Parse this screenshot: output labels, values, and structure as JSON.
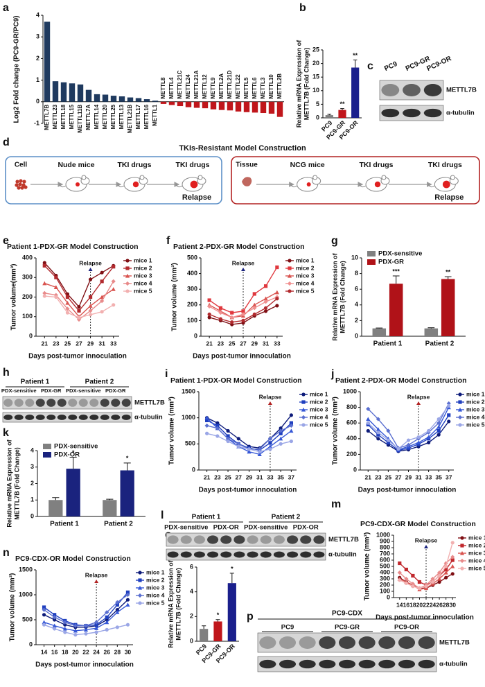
{
  "chart_data": [
    {
      "panel": "a",
      "type": "bar",
      "ylabel": "Log2 Fold change (PC9-GR/PC9)",
      "categories": [
        "METTL7B",
        "METTL23",
        "METTL18",
        "METTL15",
        "METTL11B",
        "METTL7A",
        "METTL14",
        "METTL20",
        "METTL25",
        "METTL13",
        "METTL21B",
        "METTL17",
        "METTL16",
        "METTL1",
        "METTL8",
        "METTL4",
        "METTL21C",
        "METTL24",
        "METTL21A",
        "METTL12",
        "METTL9",
        "METTL2A",
        "METTL21D",
        "METTL22",
        "METTL5",
        "METTL6",
        "METTL3",
        "METTL10",
        "METTL2B"
      ],
      "values": [
        3.7,
        0.95,
        0.9,
        0.85,
        0.8,
        0.55,
        0.35,
        0.33,
        0.28,
        0.25,
        0.2,
        0.17,
        0.12,
        0.05,
        -0.1,
        -0.15,
        -0.2,
        -0.25,
        -0.28,
        -0.3,
        -0.35,
        -0.38,
        -0.4,
        -0.45,
        -0.48,
        -0.5,
        -0.52,
        -0.55,
        -0.7
      ],
      "color_positive": "#1f3a5f",
      "color_negative": "#c0161b",
      "ylim": [
        -1,
        4
      ],
      "yticks": [
        -1,
        0,
        1,
        2,
        3,
        4
      ]
    },
    {
      "panel": "b",
      "type": "bar",
      "ylabel": [
        "Relative mRNA Expression of",
        "METTL7B (Fold Change)"
      ],
      "categories": [
        "PC9",
        "PC9-GR",
        "PC9-OR"
      ],
      "values": [
        1,
        2.9,
        18.5
      ],
      "errors": [
        0.3,
        0.5,
        2.8
      ],
      "colors": [
        "#808080",
        "#c0161b",
        "#1a1f8c"
      ],
      "annotations": [
        {
          "index": 1,
          "text": "**"
        },
        {
          "index": 2,
          "text": "**"
        }
      ],
      "ylim": [
        0,
        25
      ],
      "yticks": [
        0,
        5,
        10,
        15,
        20,
        25
      ]
    },
    {
      "panel": "e",
      "type": "line",
      "title": "Patient 1-PDX-GR Model Construction",
      "xlabel": "Days post-tumor innoculation",
      "ylabel": "Tumor volume(mm³)",
      "x": [
        21,
        23,
        25,
        27,
        29,
        31,
        33
      ],
      "xlim": [
        20,
        34
      ],
      "xticks": [
        21,
        23,
        25,
        27,
        29,
        31,
        33
      ],
      "ylim": [
        0,
        400
      ],
      "yticks": [
        0,
        100,
        200,
        300,
        400
      ],
      "annotation": {
        "text": "Relapse",
        "x": 29,
        "color": "#1a237e"
      },
      "series": [
        {
          "name": "mice 1",
          "color": "#7f0f14",
          "values": [
            375,
            310,
            215,
            150,
            290,
            325,
            360
          ]
        },
        {
          "name": "mice 2",
          "color": "#b22a2e",
          "values": [
            360,
            300,
            200,
            130,
            200,
            280,
            355
          ]
        },
        {
          "name": "mice 3",
          "color": "#d9534f",
          "values": [
            270,
            250,
            170,
            100,
            155,
            200,
            240
          ]
        },
        {
          "name": "mice 4",
          "color": "#e88a8a",
          "values": [
            220,
            210,
            140,
            85,
            130,
            180,
            280
          ]
        },
        {
          "name": "mice 5",
          "color": "#f2b0b0",
          "values": [
            205,
            200,
            120,
            95,
            110,
            125,
            160
          ]
        }
      ]
    },
    {
      "panel": "f",
      "type": "line",
      "title": "Patient 2-PDX-GR Model Construction",
      "xlabel": "Days post-tumor innoculation",
      "ylabel": "Tumor volume (mm³)",
      "x": [
        21,
        23,
        25,
        27,
        29,
        31,
        33
      ],
      "xlim": [
        20,
        34
      ],
      "xticks": [
        21,
        23,
        25,
        27,
        29,
        31,
        33
      ],
      "ylim": [
        0,
        500
      ],
      "yticks": [
        0,
        100,
        200,
        300,
        400,
        500
      ],
      "annotation": {
        "text": "Relapse",
        "x": 27,
        "color": "#1a237e"
      },
      "series": [
        {
          "name": "mice 1",
          "color": "#7f0f14",
          "values": [
            120,
            100,
            75,
            85,
            130,
            160,
            195
          ]
        },
        {
          "name": "mice 2",
          "color": "#e0383e",
          "values": [
            230,
            180,
            150,
            160,
            270,
            320,
            440
          ]
        },
        {
          "name": "mice 3",
          "color": "#d9534f",
          "values": [
            200,
            160,
            120,
            130,
            200,
            240,
            280
          ]
        },
        {
          "name": "mice 4",
          "color": "#f09090",
          "values": [
            190,
            150,
            120,
            140,
            180,
            220,
            250
          ]
        },
        {
          "name": "mice 5",
          "color": "#b22a2e",
          "values": [
            140,
            110,
            90,
            100,
            140,
            180,
            240
          ]
        }
      ]
    },
    {
      "panel": "g",
      "type": "grouped_bar",
      "ylabel": [
        "Relative mRNA Expression of",
        "METTL7B (Fold Change)"
      ],
      "categories": [
        "Patient 1",
        "Patient 2"
      ],
      "ylim": [
        0,
        10
      ],
      "yticks": [
        0,
        2,
        4,
        6,
        8,
        10
      ],
      "series": [
        {
          "name": "PDX-sensitive",
          "color": "#808080",
          "values": [
            1,
            1
          ],
          "errors": [
            0.05,
            0.08
          ]
        },
        {
          "name": "PDX-GR",
          "color": "#b01218",
          "values": [
            6.7,
            7.3
          ],
          "errors": [
            1.0,
            0.3
          ],
          "annotations": [
            {
              "index": 0,
              "text": "***"
            },
            {
              "index": 1,
              "text": "**"
            }
          ]
        }
      ]
    },
    {
      "panel": "i",
      "type": "line",
      "title": "Patient 1-PDX-OR Model Construction",
      "xlabel": "Days post-tumor innoculation",
      "ylabel": "Tumor volume (mm³)",
      "x": [
        21,
        23,
        25,
        27,
        29,
        31,
        33,
        35,
        37
      ],
      "xlim": [
        20,
        38
      ],
      "xticks": [
        21,
        23,
        25,
        27,
        29,
        31,
        33,
        35,
        37
      ],
      "ylim": [
        0,
        1500
      ],
      "yticks": [
        0,
        500,
        1000,
        1500
      ],
      "annotation": {
        "text": "Relapse",
        "x": 33,
        "color": "#b22222"
      },
      "series": [
        {
          "name": "mice 1",
          "color": "#0d1b7a",
          "values": [
            1000,
            900,
            750,
            600,
            450,
            420,
            600,
            800,
            1050
          ]
        },
        {
          "name": "mice 2",
          "color": "#1f3fbf",
          "values": [
            950,
            850,
            650,
            500,
            420,
            380,
            520,
            700,
            900
          ]
        },
        {
          "name": "mice 3",
          "color": "#3557d6",
          "values": [
            1000,
            800,
            600,
            450,
            350,
            300,
            450,
            600,
            750
          ]
        },
        {
          "name": "mice 4",
          "color": "#5a6fd0",
          "values": [
            850,
            800,
            600,
            500,
            400,
            400,
            600,
            750,
            850
          ]
        },
        {
          "name": "mice 5",
          "color": "#9aa6e6",
          "values": [
            700,
            650,
            550,
            450,
            400,
            350,
            400,
            500,
            550
          ]
        }
      ]
    },
    {
      "panel": "j",
      "type": "line",
      "title": "Patient 2-PDX-OR Model Construction",
      "xlabel": "Days post-tumor innoculation",
      "ylabel": "Tumor volume (mm³)",
      "x": [
        21,
        23,
        25,
        27,
        29,
        31,
        33,
        35,
        37
      ],
      "xlim": [
        20,
        38
      ],
      "xticks": [
        21,
        23,
        25,
        27,
        29,
        31,
        33,
        35,
        37
      ],
      "ylim": [
        0,
        1000
      ],
      "yticks": [
        0,
        200,
        400,
        600,
        800,
        1000
      ],
      "annotation": {
        "text": "Relapse",
        "x": 31,
        "color": "#b22222"
      },
      "series": [
        {
          "name": "mice 1",
          "color": "#0d1b7a",
          "values": [
            500,
            400,
            320,
            240,
            260,
            300,
            350,
            450,
            620
          ]
        },
        {
          "name": "mice 2",
          "color": "#1f3fbf",
          "values": [
            580,
            450,
            350,
            250,
            280,
            330,
            400,
            500,
            700
          ]
        },
        {
          "name": "mice 3",
          "color": "#3557d6",
          "values": [
            650,
            520,
            400,
            260,
            300,
            350,
            420,
            550,
            800
          ]
        },
        {
          "name": "mice 4",
          "color": "#5a6fd0",
          "values": [
            780,
            650,
            500,
            280,
            320,
            400,
            480,
            600,
            850
          ]
        },
        {
          "name": "mice 5",
          "color": "#9aa6e6",
          "values": [
            600,
            480,
            380,
            270,
            380,
            420,
            500,
            650,
            820
          ]
        }
      ]
    },
    {
      "panel": "k",
      "type": "grouped_bar",
      "ylabel": [
        "Relative mRNA Expression of",
        "METTL7B (Fold Change)"
      ],
      "categories": [
        "Patient 1",
        "Patient 2"
      ],
      "ylim": [
        0,
        4
      ],
      "yticks": [
        0,
        1,
        2,
        3,
        4
      ],
      "series": [
        {
          "name": "PDX-sensitive",
          "color": "#808080",
          "values": [
            1,
            1
          ],
          "errors": [
            0.15,
            0.05
          ]
        },
        {
          "name": "PDX-OR",
          "color": "#1a237e",
          "values": [
            2.9,
            2.8
          ],
          "errors": [
            0.7,
            0.45
          ],
          "annotations": [
            {
              "index": 0,
              "text": "*"
            },
            {
              "index": 1,
              "text": "*"
            }
          ]
        }
      ]
    },
    {
      "panel": "m",
      "type": "line",
      "title": "PC9-CDX-GR Model Construction",
      "xlabel": "Days post-tumor innoculation",
      "ylabel": "Tumor volume (mm³)",
      "x": [
        14,
        16,
        18,
        20,
        22,
        24,
        26,
        28,
        30
      ],
      "xlim": [
        13,
        31
      ],
      "xticks": [
        14,
        16,
        18,
        20,
        22,
        24,
        26,
        28,
        30
      ],
      "ylim": [
        0,
        1000
      ],
      "yticks": [
        0,
        100,
        200,
        300,
        400,
        500,
        600,
        700,
        800,
        900,
        1000
      ],
      "annotation": {
        "text": "Relapse",
        "x": 22,
        "color": "#1a237e"
      },
      "series": [
        {
          "name": "mice 1",
          "color": "#7f0f14",
          "values": [
            320,
            250,
            200,
            150,
            150,
            200,
            250,
            320,
            380
          ]
        },
        {
          "name": "mice 2",
          "color": "#c0282d",
          "values": [
            550,
            450,
            350,
            250,
            200,
            250,
            350,
            450,
            600
          ]
        },
        {
          "name": "mice 3",
          "color": "#d9534f",
          "values": [
            300,
            250,
            200,
            130,
            150,
            220,
            300,
            400,
            500
          ]
        },
        {
          "name": "mice 4",
          "color": "#e88a8a",
          "values": [
            400,
            300,
            220,
            150,
            200,
            300,
            400,
            550,
            650
          ]
        },
        {
          "name": "mice 5",
          "color": "#f2b0b0",
          "values": [
            280,
            230,
            180,
            150,
            180,
            250,
            350,
            500,
            880
          ]
        }
      ]
    },
    {
      "panel": "n",
      "type": "line",
      "title": "PC9-CDX-OR Model Construction",
      "xlabel": "Days post-tumor innoculation",
      "ylabel": "Tumor volume (mm³)",
      "x": [
        14,
        16,
        18,
        20,
        22,
        24,
        26,
        28,
        30
      ],
      "xlim": [
        13,
        31
      ],
      "xticks": [
        14,
        16,
        18,
        20,
        22,
        24,
        26,
        28,
        30
      ],
      "ylim": [
        0,
        1500
      ],
      "yticks": [
        0,
        500,
        1000,
        1500
      ],
      "annotation": {
        "text": "Relapse",
        "x": 24,
        "color": "#b22222"
      },
      "series": [
        {
          "name": "mice 1",
          "color": "#0d1b7a",
          "values": [
            600,
            500,
            400,
            350,
            350,
            380,
            500,
            700,
            900
          ]
        },
        {
          "name": "mice 2",
          "color": "#1f3fbf",
          "values": [
            750,
            600,
            480,
            400,
            380,
            400,
            550,
            800,
            1050
          ]
        },
        {
          "name": "mice 3",
          "color": "#3557d6",
          "values": [
            450,
            380,
            320,
            280,
            300,
            330,
            450,
            650,
            800
          ]
        },
        {
          "name": "mice 4",
          "color": "#5a6fd0",
          "values": [
            700,
            550,
            450,
            380,
            380,
            450,
            650,
            850,
            1000
          ]
        },
        {
          "name": "mice 5",
          "color": "#9aa6e6",
          "values": [
            400,
            320,
            250,
            200,
            220,
            250,
            300,
            350,
            400
          ]
        }
      ]
    },
    {
      "panel": "o",
      "type": "bar",
      "title": "PC9-CDX",
      "ylabel": [
        "Relative mRNA Expression of",
        "METTL7B (Fold Change)"
      ],
      "categories": [
        "PC9",
        "PC9-GR",
        "PC9-OR"
      ],
      "values": [
        1,
        1.6,
        4.7
      ],
      "errors": [
        0.25,
        0.15,
        0.8
      ],
      "colors": [
        "#808080",
        "#c0161b",
        "#1a1f8c"
      ],
      "annotations": [
        {
          "index": 1,
          "text": "*"
        },
        {
          "index": 2,
          "text": "*"
        }
      ],
      "ylim": [
        0,
        6
      ],
      "yticks": [
        0,
        2,
        4,
        6
      ]
    }
  ],
  "blots": [
    {
      "panel": "c",
      "lanes": [
        "PC9",
        "PC9-GR",
        "PC9-OR"
      ],
      "rows": [
        "METTL7B",
        "α-tubulin"
      ]
    },
    {
      "panel": "h",
      "groups": [
        "Patient 1",
        "Patient 2"
      ],
      "lanes": [
        "PDX-sensitive",
        "PDX-GR",
        "PDX-sensitive",
        "PDX-GR"
      ],
      "rows": [
        "METTL7B",
        "α-tubulin"
      ]
    },
    {
      "panel": "l",
      "groups": [
        "Patient 1",
        "Patient 2"
      ],
      "lanes": [
        "PDX-sensitive",
        "PDX-OR",
        "PDX-sensitive",
        "PDX-OR"
      ],
      "rows": [
        "METTL7B",
        "α-tubulin"
      ]
    },
    {
      "panel": "p",
      "title": "PC9-CDX",
      "lanes": [
        "PC9",
        "PC9-GR",
        "PC9-OR"
      ],
      "rows": [
        "METTL7B",
        "α-tubulin"
      ]
    }
  ],
  "diagram": {
    "panel": "d",
    "title": "TKIs-Resistant Model Construction",
    "left": {
      "source": "Cell",
      "steps": [
        "Nude mice",
        "TKI drugs",
        "TKI drugs"
      ],
      "outcome": "Relapse"
    },
    "right": {
      "source": "Tissue",
      "steps": [
        "NCG mice",
        "TKI drugs",
        "TKI drugs"
      ],
      "outcome": "Relapse"
    }
  }
}
